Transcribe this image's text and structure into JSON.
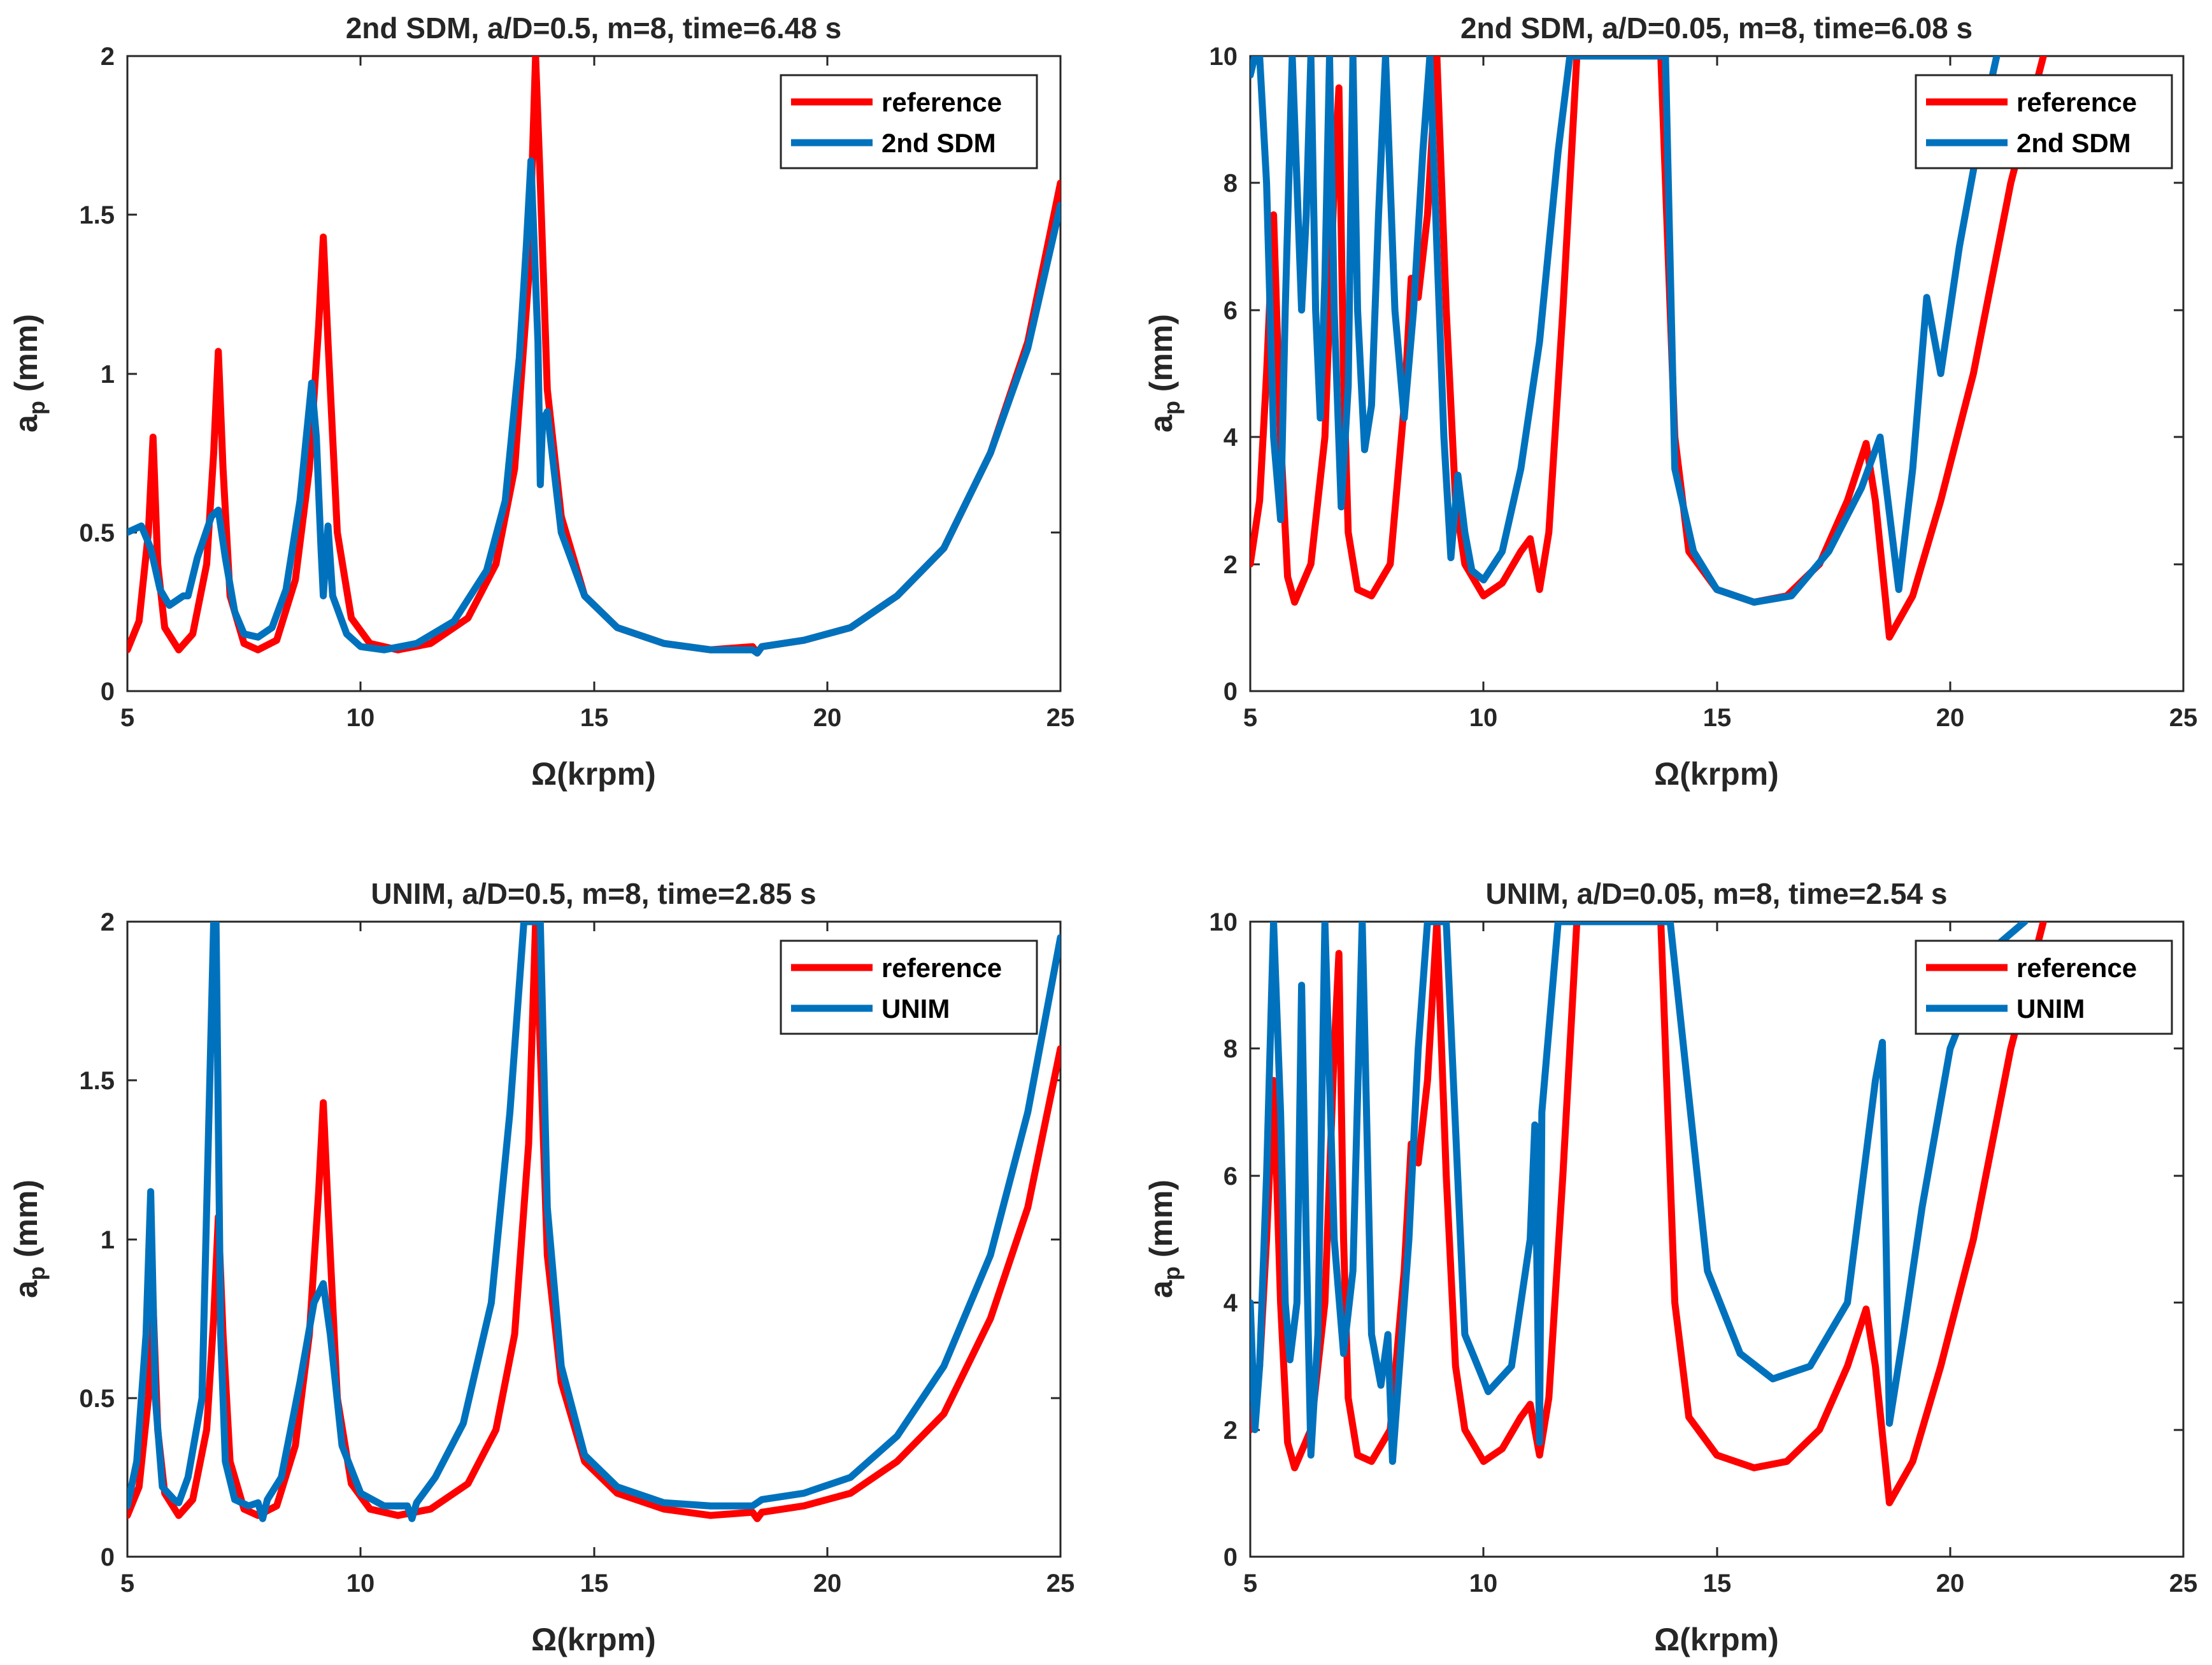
{
  "chart_data": [
    {
      "type": "line",
      "title": "2nd SDM, a/D=0.5, m=8, time=6.48 s",
      "xlabel": "Ω(krpm)",
      "ylabel_main": "a",
      "ylabel_sub": "p",
      "ylabel_unit": " (mm)",
      "xlim": [
        5,
        25
      ],
      "ylim": [
        0,
        2
      ],
      "xticks": [
        5,
        10,
        15,
        20,
        25
      ],
      "xtick_labels": [
        "5",
        "10",
        "15",
        "20",
        "25"
      ],
      "yticks": [
        0,
        0.5,
        1,
        1.5,
        2
      ],
      "ytick_labels": [
        "0",
        "0.5",
        "1",
        "1.5",
        "2"
      ],
      "legend_position": "top-right",
      "series": [
        {
          "name": "reference",
          "color": "#ff0000",
          "x": [
            5.0,
            5.25,
            5.45,
            5.55,
            5.65,
            5.8,
            6.1,
            6.4,
            6.7,
            6.85,
            6.95,
            7.05,
            7.2,
            7.5,
            7.8,
            8.2,
            8.6,
            8.9,
            9.1,
            9.2,
            9.3,
            9.5,
            9.8,
            10.2,
            10.8,
            11.5,
            12.3,
            12.9,
            13.3,
            13.6,
            13.75,
            13.85,
            14.0,
            14.3,
            14.8,
            15.5,
            16.5,
            17.5,
            18.4,
            18.5,
            18.6,
            19.5,
            20.5,
            21.5,
            22.5,
            23.5,
            24.3,
            25.0
          ],
          "y": [
            0.13,
            0.22,
            0.5,
            0.8,
            0.4,
            0.2,
            0.13,
            0.18,
            0.4,
            0.75,
            1.07,
            0.7,
            0.3,
            0.15,
            0.13,
            0.16,
            0.35,
            0.7,
            1.15,
            1.43,
            1.1,
            0.5,
            0.23,
            0.15,
            0.13,
            0.15,
            0.23,
            0.4,
            0.7,
            1.3,
            2.0,
            1.6,
            0.95,
            0.55,
            0.3,
            0.2,
            0.15,
            0.13,
            0.14,
            0.12,
            0.14,
            0.16,
            0.2,
            0.3,
            0.45,
            0.75,
            1.1,
            1.6
          ]
        },
        {
          "name": "2nd SDM",
          "color": "#0072bd",
          "x": [
            5.0,
            5.3,
            5.5,
            5.7,
            5.9,
            6.1,
            6.2,
            6.3,
            6.5,
            6.8,
            6.95,
            7.1,
            7.3,
            7.5,
            7.8,
            8.1,
            8.4,
            8.7,
            8.95,
            9.05,
            9.15,
            9.2,
            9.3,
            9.4,
            9.7,
            10.0,
            10.5,
            11.2,
            12.0,
            12.7,
            13.1,
            13.4,
            13.55,
            13.65,
            13.8,
            13.85,
            13.9,
            14.0,
            14.3,
            14.8,
            15.5,
            16.5,
            17.5,
            18.4,
            18.5,
            18.6,
            19.5,
            20.5,
            21.5,
            22.5,
            23.5,
            24.3,
            25.0
          ],
          "y": [
            0.5,
            0.52,
            0.45,
            0.32,
            0.27,
            0.29,
            0.3,
            0.3,
            0.42,
            0.55,
            0.57,
            0.42,
            0.25,
            0.18,
            0.17,
            0.2,
            0.32,
            0.6,
            0.97,
            0.8,
            0.45,
            0.3,
            0.52,
            0.3,
            0.18,
            0.14,
            0.13,
            0.15,
            0.22,
            0.38,
            0.6,
            1.05,
            1.4,
            1.67,
            1.1,
            0.65,
            0.85,
            0.88,
            0.5,
            0.3,
            0.2,
            0.15,
            0.13,
            0.13,
            0.12,
            0.14,
            0.16,
            0.2,
            0.3,
            0.45,
            0.75,
            1.08,
            1.53
          ]
        }
      ]
    },
    {
      "type": "line",
      "title": "2nd SDM, a/D=0.05, m=8, time=6.08 s",
      "xlabel": "Ω(krpm)",
      "ylabel_main": "a",
      "ylabel_sub": "p",
      "ylabel_unit": " (mm)",
      "xlim": [
        5,
        25
      ],
      "ylim": [
        0,
        10
      ],
      "xticks": [
        5,
        10,
        15,
        20,
        25
      ],
      "xtick_labels": [
        "5",
        "10",
        "15",
        "20",
        "25"
      ],
      "yticks": [
        0,
        2,
        4,
        6,
        8,
        10
      ],
      "ytick_labels": [
        "0",
        "2",
        "4",
        "6",
        "8",
        "10"
      ],
      "legend_position": "top-right",
      "series": [
        {
          "name": "reference",
          "color": "#ff0000",
          "x": [
            5.0,
            5.2,
            5.35,
            5.5,
            5.65,
            5.8,
            5.95,
            6.3,
            6.6,
            6.8,
            6.9,
            7.0,
            7.1,
            7.3,
            7.6,
            8.0,
            8.3,
            8.45,
            8.6,
            8.8,
            9.0,
            9.2,
            9.4,
            9.6,
            10.0,
            10.4,
            10.8,
            11.0,
            11.2,
            11.4,
            11.7,
            12.0,
            12.2,
            13.8,
            14.1,
            14.4,
            15.0,
            15.8,
            16.5,
            17.2,
            17.8,
            18.2,
            18.4,
            18.7,
            19.2,
            19.8,
            20.5,
            21.3,
            22.0
          ],
          "y": [
            2.0,
            3.0,
            5.0,
            7.5,
            4.0,
            1.8,
            1.4,
            2.0,
            4.0,
            8.0,
            9.5,
            5.0,
            2.5,
            1.6,
            1.5,
            2.0,
            4.5,
            6.5,
            6.2,
            7.5,
            10.0,
            6.0,
            3.0,
            2.0,
            1.5,
            1.7,
            2.2,
            2.4,
            1.6,
            2.5,
            6.0,
            10.0,
            10.0,
            10.0,
            4.0,
            2.2,
            1.6,
            1.4,
            1.5,
            2.0,
            3.0,
            3.9,
            3.0,
            0.85,
            1.5,
            3.0,
            5.0,
            8.0,
            10.0
          ]
        },
        {
          "name": "2nd SDM",
          "color": "#0072bd",
          "x": [
            5.0,
            5.1,
            5.2,
            5.35,
            5.5,
            5.65,
            5.75,
            5.9,
            6.0,
            6.1,
            6.2,
            6.3,
            6.4,
            6.5,
            6.6,
            6.7,
            6.8,
            6.95,
            7.1,
            7.2,
            7.3,
            7.45,
            7.6,
            7.75,
            7.9,
            8.1,
            8.3,
            8.5,
            8.7,
            8.85,
            9.0,
            9.15,
            9.3,
            9.45,
            9.6,
            9.75,
            10.0,
            10.4,
            10.8,
            11.2,
            11.6,
            11.85,
            13.9,
            14.1,
            14.5,
            15.0,
            15.8,
            16.6,
            17.4,
            18.1,
            18.5,
            18.9,
            19.2,
            19.5,
            19.8,
            20.2,
            20.7,
            21.0
          ],
          "y": [
            9.7,
            10.0,
            10.0,
            8.0,
            4.0,
            2.7,
            6.0,
            10.0,
            8.0,
            6.0,
            7.5,
            10.0,
            6.0,
            4.3,
            6.5,
            10.0,
            6.0,
            2.9,
            4.8,
            10.0,
            6.0,
            3.8,
            4.5,
            7.5,
            10.0,
            6.0,
            4.3,
            6.0,
            8.5,
            10.0,
            7.0,
            4.0,
            2.1,
            3.4,
            2.5,
            1.9,
            1.75,
            2.2,
            3.5,
            5.5,
            8.5,
            10.0,
            10.0,
            3.5,
            2.2,
            1.6,
            1.4,
            1.5,
            2.2,
            3.2,
            4.0,
            1.6,
            3.5,
            6.2,
            5.0,
            7.0,
            9.0,
            10.0
          ]
        }
      ]
    },
    {
      "type": "line",
      "title": "UNIM, a/D=0.5, m=8, time=2.85 s",
      "xlabel": "Ω(krpm)",
      "ylabel_main": "a",
      "ylabel_sub": "p",
      "ylabel_unit": " (mm)",
      "xlim": [
        5,
        25
      ],
      "ylim": [
        0,
        2
      ],
      "xticks": [
        5,
        10,
        15,
        20,
        25
      ],
      "xtick_labels": [
        "5",
        "10",
        "15",
        "20",
        "25"
      ],
      "yticks": [
        0,
        0.5,
        1,
        1.5,
        2
      ],
      "ytick_labels": [
        "0",
        "0.5",
        "1",
        "1.5",
        "2"
      ],
      "legend_position": "top-right",
      "series": [
        {
          "name": "reference",
          "color": "#ff0000",
          "x": [
            5.0,
            5.25,
            5.45,
            5.55,
            5.65,
            5.8,
            6.1,
            6.4,
            6.7,
            6.85,
            6.95,
            7.05,
            7.2,
            7.5,
            7.8,
            8.2,
            8.6,
            8.9,
            9.1,
            9.2,
            9.3,
            9.5,
            9.8,
            10.2,
            10.8,
            11.5,
            12.3,
            12.9,
            13.3,
            13.6,
            13.75,
            13.85,
            14.0,
            14.3,
            14.8,
            15.5,
            16.5,
            17.5,
            18.4,
            18.5,
            18.6,
            19.5,
            20.5,
            21.5,
            22.5,
            23.5,
            24.3,
            25.0
          ],
          "y": [
            0.13,
            0.22,
            0.5,
            0.8,
            0.4,
            0.2,
            0.13,
            0.18,
            0.4,
            0.75,
            1.07,
            0.7,
            0.3,
            0.15,
            0.13,
            0.16,
            0.35,
            0.7,
            1.15,
            1.43,
            1.1,
            0.5,
            0.23,
            0.15,
            0.13,
            0.15,
            0.23,
            0.4,
            0.7,
            1.3,
            2.0,
            1.6,
            0.95,
            0.55,
            0.3,
            0.2,
            0.15,
            0.13,
            0.14,
            0.12,
            0.14,
            0.16,
            0.2,
            0.3,
            0.45,
            0.75,
            1.1,
            1.6
          ]
        },
        {
          "name": "UNIM",
          "color": "#0072bd",
          "x": [
            5.0,
            5.2,
            5.4,
            5.5,
            5.6,
            5.75,
            6.0,
            6.1,
            6.3,
            6.6,
            6.85,
            6.9,
            7.0,
            7.1,
            7.3,
            7.6,
            7.8,
            7.9,
            8.0,
            8.3,
            8.7,
            9.0,
            9.2,
            9.35,
            9.6,
            10.0,
            10.5,
            11.0,
            11.1,
            11.2,
            11.6,
            12.2,
            12.8,
            13.2,
            13.5,
            13.7,
            13.85,
            14.0,
            14.3,
            14.8,
            15.5,
            16.5,
            17.5,
            18.4,
            18.5,
            18.6,
            19.5,
            20.5,
            21.5,
            22.5,
            23.5,
            24.3,
            25.0
          ],
          "y": [
            0.16,
            0.3,
            0.7,
            1.15,
            0.5,
            0.22,
            0.18,
            0.17,
            0.25,
            0.5,
            2.0,
            2.0,
            0.7,
            0.3,
            0.18,
            0.16,
            0.17,
            0.12,
            0.18,
            0.25,
            0.55,
            0.8,
            0.86,
            0.7,
            0.35,
            0.2,
            0.16,
            0.16,
            0.12,
            0.17,
            0.25,
            0.42,
            0.8,
            1.4,
            2.0,
            2.0,
            2.0,
            1.1,
            0.6,
            0.32,
            0.22,
            0.17,
            0.16,
            0.16,
            0.17,
            0.18,
            0.2,
            0.25,
            0.38,
            0.6,
            0.95,
            1.4,
            1.95
          ]
        }
      ]
    },
    {
      "type": "line",
      "title": "UNIM, a/D=0.05, m=8, time=2.54 s",
      "xlabel": "Ω(krpm)",
      "ylabel_main": "a",
      "ylabel_sub": "p",
      "ylabel_unit": " (mm)",
      "xlim": [
        5,
        25
      ],
      "ylim": [
        0,
        10
      ],
      "xticks": [
        5,
        10,
        15,
        20,
        25
      ],
      "xtick_labels": [
        "5",
        "10",
        "15",
        "20",
        "25"
      ],
      "yticks": [
        0,
        2,
        4,
        6,
        8,
        10
      ],
      "ytick_labels": [
        "0",
        "2",
        "4",
        "6",
        "8",
        "10"
      ],
      "legend_position": "top-right",
      "series": [
        {
          "name": "reference",
          "color": "#ff0000",
          "x": [
            5.0,
            5.2,
            5.35,
            5.5,
            5.65,
            5.8,
            5.95,
            6.3,
            6.6,
            6.8,
            6.9,
            7.0,
            7.1,
            7.3,
            7.6,
            8.0,
            8.3,
            8.45,
            8.6,
            8.8,
            9.0,
            9.2,
            9.4,
            9.6,
            10.0,
            10.4,
            10.8,
            11.0,
            11.2,
            11.4,
            11.7,
            12.0,
            12.2,
            13.8,
            14.1,
            14.4,
            15.0,
            15.8,
            16.5,
            17.2,
            17.8,
            18.2,
            18.4,
            18.7,
            19.2,
            19.8,
            20.5,
            21.3,
            22.0
          ],
          "y": [
            2.0,
            3.0,
            5.0,
            7.5,
            4.0,
            1.8,
            1.4,
            2.0,
            4.0,
            8.0,
            9.5,
            5.0,
            2.5,
            1.6,
            1.5,
            2.0,
            4.5,
            6.5,
            6.2,
            7.5,
            10.0,
            6.0,
            3.0,
            2.0,
            1.5,
            1.7,
            2.2,
            2.4,
            1.6,
            2.5,
            6.0,
            10.0,
            10.0,
            10.0,
            4.0,
            2.2,
            1.6,
            1.4,
            1.5,
            2.0,
            3.0,
            3.9,
            3.0,
            0.85,
            1.5,
            3.0,
            5.0,
            8.0,
            10.0
          ]
        },
        {
          "name": "UNIM",
          "color": "#0072bd",
          "x": [
            5.0,
            5.1,
            5.2,
            5.35,
            5.5,
            5.65,
            5.75,
            5.85,
            6.0,
            6.1,
            6.2,
            6.3,
            6.45,
            6.6,
            6.8,
            7.0,
            7.2,
            7.4,
            7.6,
            7.8,
            7.95,
            8.05,
            8.2,
            8.4,
            8.6,
            8.8,
            9.0,
            9.2,
            9.6,
            10.1,
            10.6,
            11.0,
            11.1,
            11.2,
            11.25,
            11.6,
            12.2,
            13.0,
            14.0,
            14.8,
            15.5,
            16.2,
            17.0,
            17.8,
            18.4,
            18.55,
            18.7,
            19.0,
            19.4,
            20.0,
            20.8,
            21.6
          ],
          "y": [
            4.0,
            2.0,
            3.0,
            6.0,
            10.0,
            7.0,
            4.0,
            3.1,
            4.0,
            9.0,
            5.0,
            1.6,
            3.5,
            10.0,
            5.0,
            3.2,
            4.5,
            10.0,
            3.5,
            2.7,
            3.5,
            1.5,
            3.0,
            5.0,
            8.0,
            10.0,
            10.0,
            10.0,
            3.5,
            2.6,
            3.0,
            5.0,
            6.8,
            1.8,
            7.0,
            10.0,
            10.0,
            10.0,
            10.0,
            4.5,
            3.2,
            2.8,
            3.0,
            4.0,
            7.5,
            8.1,
            2.1,
            3.5,
            5.5,
            8.0,
            9.5,
            10.0
          ]
        }
      ]
    }
  ]
}
